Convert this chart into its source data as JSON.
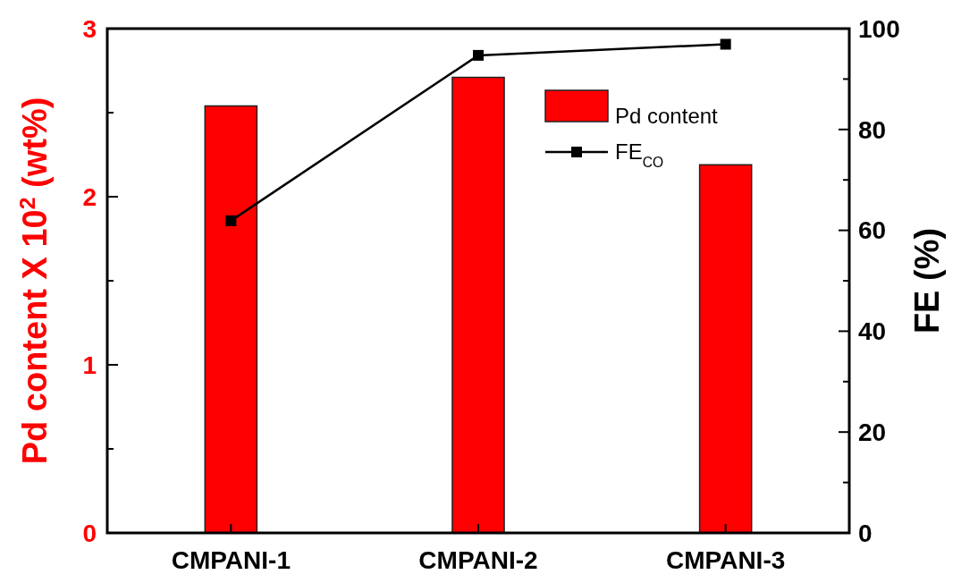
{
  "chart_data": {
    "type": "bar",
    "categories": [
      "CMPANI-1",
      "CMPANI-2",
      "CMPANI-3"
    ],
    "ylabel": "Pd content X 10$^{2}$  (wt%)",
    "y2label": "FE (%)",
    "ylim": [
      0,
      3
    ],
    "yticks": [
      0,
      {
        "value": 0.5,
        "label": null
      },
      1,
      {
        "value": 1.5,
        "label": null
      },
      2,
      {
        "value": 2.5,
        "label": null
      },
      3
    ],
    "y2lim": [
      0,
      100
    ],
    "y2ticks": [
      0,
      {
        "value": 10,
        "label": null
      },
      20,
      {
        "value": 30,
        "label": null
      },
      40,
      {
        "value": 50,
        "label": null
      },
      60,
      {
        "value": 70,
        "label": null
      },
      80,
      {
        "value": 90,
        "label": null
      },
      100
    ],
    "series": [
      {
        "name": "Pd content",
        "color": "#ff0000",
        "values": [
          2.54,
          2.71,
          2.19
        ]
      },
      {
        "name": "FE$_{CO}$",
        "type": "line",
        "axis": "y2",
        "color": "#000000",
        "values": [
          61.9,
          94.7,
          96.9
        ],
        "marker": "square",
        "line_style": "solid"
      }
    ],
    "legend": "top right"
  }
}
